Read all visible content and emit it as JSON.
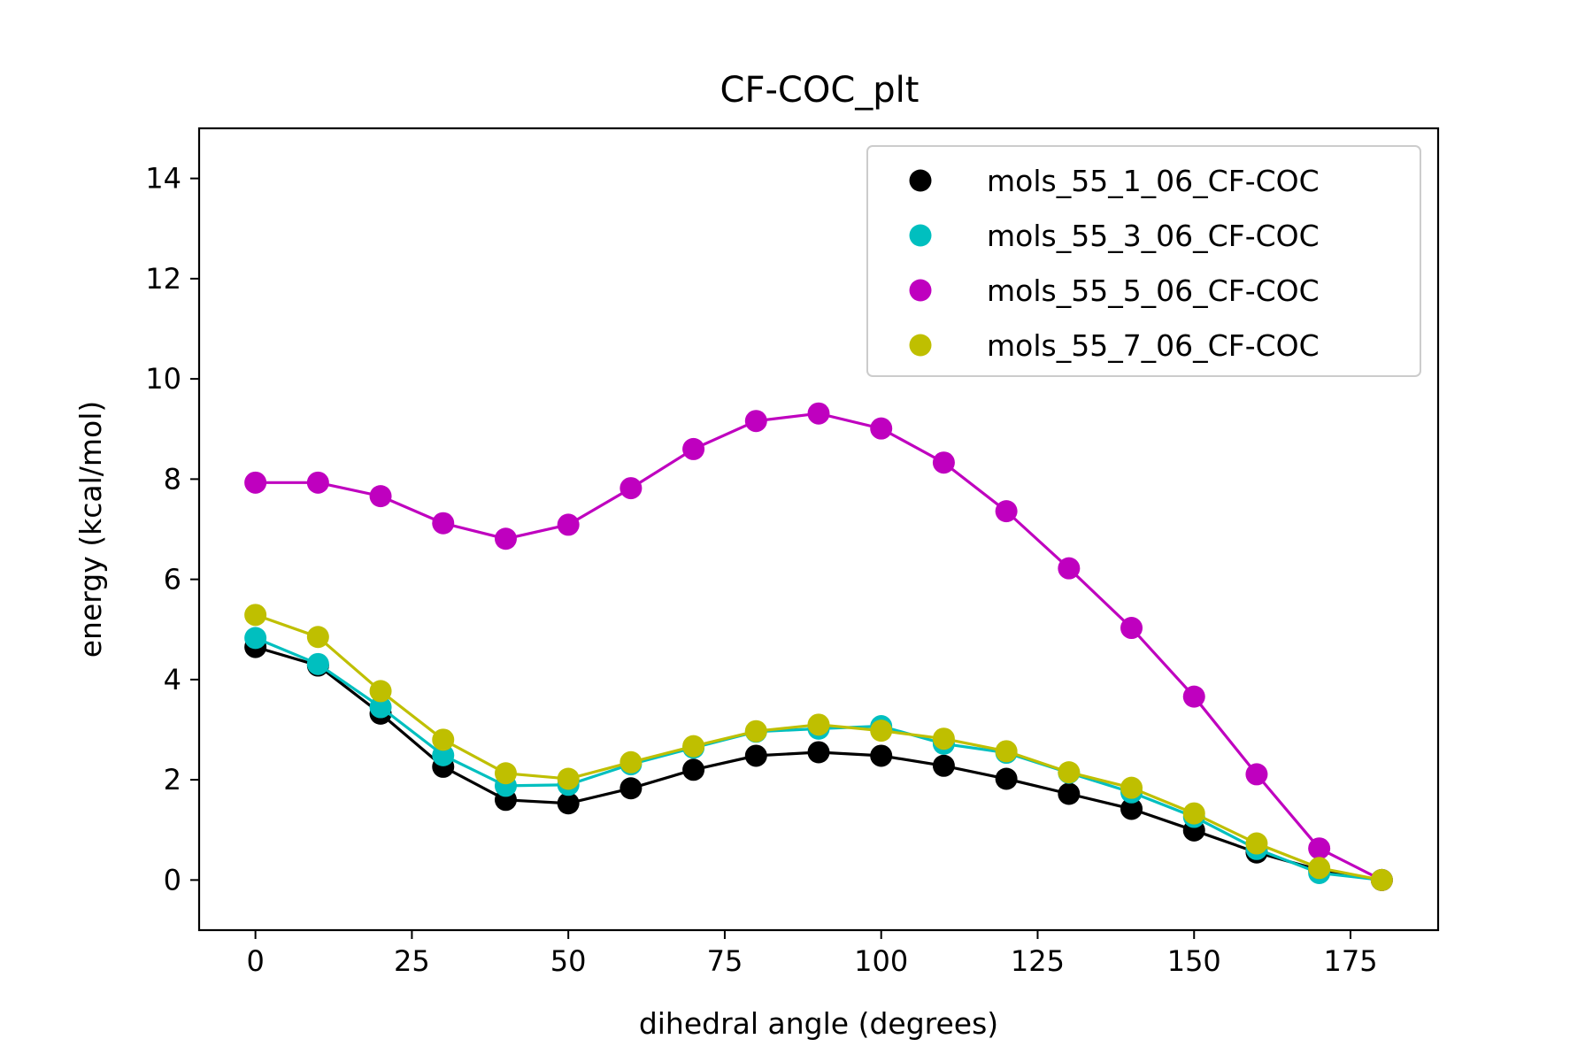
{
  "chart_data": {
    "type": "line",
    "title": "CF-COC_plt",
    "xlabel": "dihedral angle (degrees)",
    "ylabel": "energy (kcal/mol)",
    "xlim": [
      -9,
      189
    ],
    "ylim": [
      -1,
      15
    ],
    "xticks": [
      0,
      25,
      50,
      75,
      100,
      125,
      150,
      175
    ],
    "yticks": [
      0,
      2,
      4,
      6,
      8,
      10,
      12,
      14
    ],
    "grid": false,
    "legend_position": "top-right",
    "markers": true,
    "x": [
      0,
      10,
      20,
      30,
      40,
      50,
      60,
      70,
      80,
      90,
      100,
      110,
      120,
      130,
      140,
      150,
      160,
      170,
      180
    ],
    "series": [
      {
        "name": "mols_55_1_06_CF-COC",
        "color": "#000000",
        "values": [
          4.65,
          4.28,
          3.32,
          2.26,
          1.6,
          1.53,
          1.83,
          2.2,
          2.48,
          2.55,
          2.48,
          2.28,
          2.02,
          1.72,
          1.42,
          0.99,
          0.55,
          0.2,
          0.0
        ]
      },
      {
        "name": "mols_55_3_06_CF-COC",
        "color": "#00bfbf",
        "values": [
          4.83,
          4.31,
          3.45,
          2.49,
          1.88,
          1.9,
          2.31,
          2.64,
          2.96,
          3.02,
          3.07,
          2.72,
          2.54,
          2.14,
          1.75,
          1.26,
          0.62,
          0.14,
          0.0
        ]
      },
      {
        "name": "mols_55_5_06_CF-COC",
        "color": "#bf00bf",
        "values": [
          7.93,
          7.93,
          7.66,
          7.12,
          6.81,
          7.09,
          7.82,
          8.6,
          9.16,
          9.31,
          9.01,
          8.33,
          7.36,
          6.22,
          5.03,
          3.66,
          2.11,
          0.63,
          0.0
        ]
      },
      {
        "name": "mols_55_7_06_CF-COC",
        "color": "#bfbf00",
        "values": [
          5.29,
          4.85,
          3.77,
          2.8,
          2.13,
          2.02,
          2.35,
          2.67,
          2.97,
          3.1,
          2.98,
          2.82,
          2.57,
          2.15,
          1.84,
          1.33,
          0.73,
          0.24,
          0.0
        ]
      }
    ]
  }
}
